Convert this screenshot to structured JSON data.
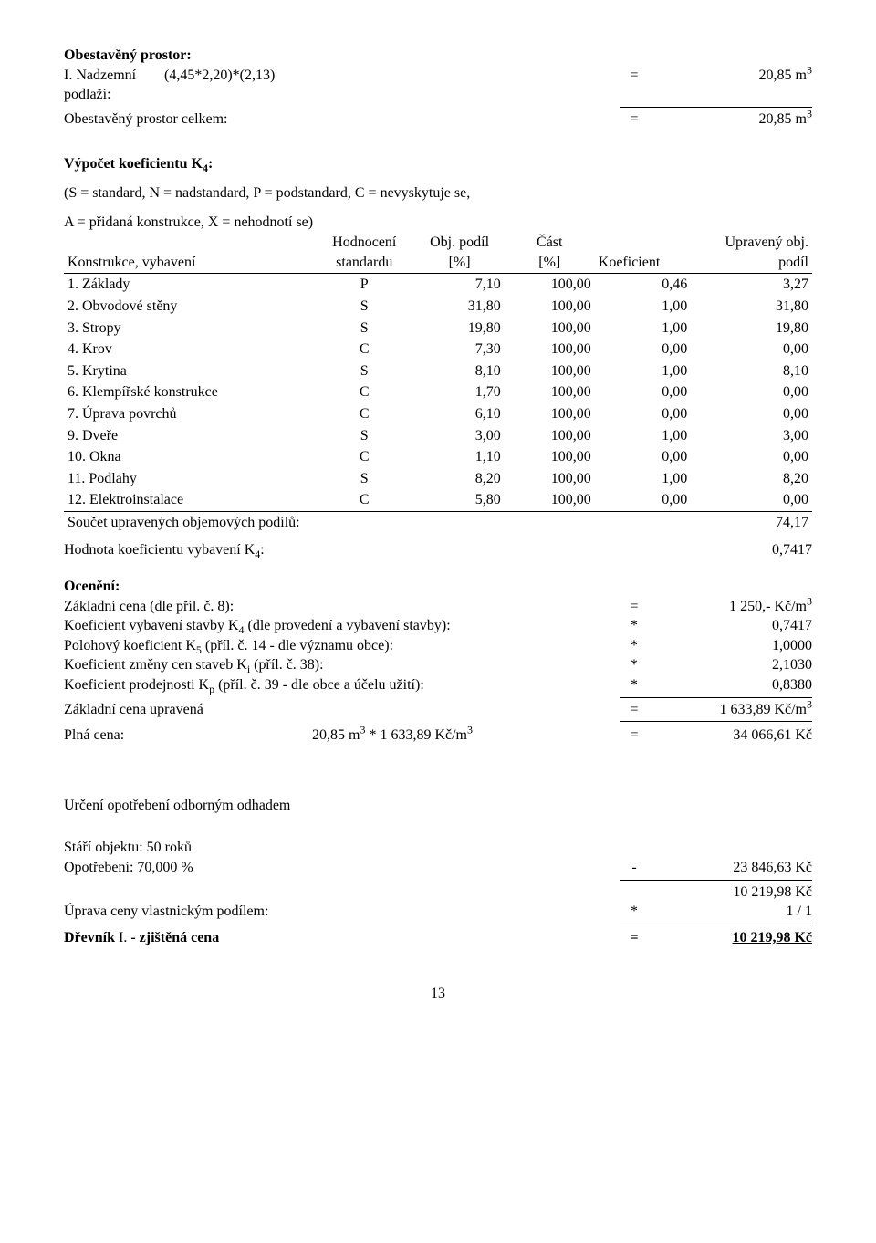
{
  "header": {
    "title": "Obestavěný prostor:",
    "row1_label": "I. Nadzemní podlaží:",
    "row1_calc": "(4,45*2,20)*(2,13)",
    "row1_eq": "=",
    "row1_val": "20,85 m",
    "row1_sup": "3",
    "row2_label": "Obestavěný prostor celkem:",
    "row2_eq": "=",
    "row2_val": "20,85 m",
    "row2_sup": "3"
  },
  "k4": {
    "title": "Výpočet koeficientu K",
    "title_sub": "4",
    "title_suffix": ":",
    "legend": "(S = standard, N = nadstandard, P = podstandard, C = nevyskytuje se,",
    "legend2": "A = přidaná konstrukce, X = nehodnotí se)",
    "head": {
      "c1": "Konstrukce, vybavení",
      "c2a": "Hodnocení",
      "c2b": "standardu",
      "c3a": "Obj. podíl",
      "c3b": "[%]",
      "c4a": "Část",
      "c4b": "[%]",
      "c5": "Koeficient",
      "c6a": "Upravený obj.",
      "c6b": "podíl"
    },
    "rows": [
      {
        "n": " 1. Základy",
        "h": "P",
        "op": "7,10",
        "cp": "100,00",
        "k": "0,46",
        "u": "3,27"
      },
      {
        "n": " 2. Obvodové stěny",
        "h": "S",
        "op": "31,80",
        "cp": "100,00",
        "k": "1,00",
        "u": "31,80"
      },
      {
        "n": " 3. Stropy",
        "h": "S",
        "op": "19,80",
        "cp": "100,00",
        "k": "1,00",
        "u": "19,80"
      },
      {
        "n": " 4. Krov",
        "h": "C",
        "op": "7,30",
        "cp": "100,00",
        "k": "0,00",
        "u": "0,00"
      },
      {
        "n": " 5. Krytina",
        "h": "S",
        "op": "8,10",
        "cp": "100,00",
        "k": "1,00",
        "u": "8,10"
      },
      {
        "n": " 6. Klempířské konstrukce",
        "h": "C",
        "op": "1,70",
        "cp": "100,00",
        "k": "0,00",
        "u": "0,00"
      },
      {
        "n": " 7. Úprava povrchů",
        "h": "C",
        "op": "6,10",
        "cp": "100,00",
        "k": "0,00",
        "u": "0,00"
      },
      {
        "n": " 9. Dveře",
        "h": "S",
        "op": "3,00",
        "cp": "100,00",
        "k": "1,00",
        "u": "3,00"
      },
      {
        "n": "10. Okna",
        "h": "C",
        "op": "1,10",
        "cp": "100,00",
        "k": "0,00",
        "u": "0,00"
      },
      {
        "n": "11. Podlahy",
        "h": "S",
        "op": "8,20",
        "cp": "100,00",
        "k": "1,00",
        "u": "8,20"
      },
      {
        "n": "12. Elektroinstalace",
        "h": "C",
        "op": "5,80",
        "cp": "100,00",
        "k": "0,00",
        "u": "0,00"
      }
    ],
    "sum_label": "Součet upravených objemových podílů:",
    "sum_val": "74,17",
    "k4_label_a": "Hodnota koeficientu vybavení K",
    "k4_label_sub": "4",
    "k4_label_b": ":",
    "k4_val": "0,7417"
  },
  "oceneni": {
    "title": "Ocenění:",
    "rows": [
      {
        "l": "Základní cena (dle příl. č. 8):",
        "eq": "=",
        "v": "1 250,- Kč/m",
        "sup": "3"
      },
      {
        "l": "Koeficient vybavení stavby K",
        "sub": "4",
        "l2": " (dle provedení a vybavení stavby):",
        "eq": "*",
        "v": "0,7417"
      },
      {
        "l": "Polohový koeficient K",
        "sub": "5",
        "l2": " (příl. č. 14 - dle významu obce):",
        "eq": "*",
        "v": "1,0000"
      },
      {
        "l": "Koeficient změny cen staveb K",
        "sub": "i",
        "l2": " (příl. č. 38):",
        "eq": "*",
        "v": "2,1030"
      },
      {
        "l": "Koeficient prodejnosti K",
        "sub": "p",
        "l2": " (příl. č. 39 - dle obce a účelu užití):",
        "eq": "*",
        "v": "0,8380"
      }
    ],
    "zc_label": "Základní cena upravená",
    "zc_eq": "=",
    "zc_val": "1 633,89 Kč/m",
    "zc_sup": "3",
    "plna_label": "Plná cena:",
    "plna_calc_a": "20,85 m",
    "plna_calc_asup": "3",
    "plna_calc_mid": " * 1 633,89 Kč/m",
    "plna_calc_bsup": "3",
    "plna_eq": "=",
    "plna_val": "34 066,61 Kč"
  },
  "bottom": {
    "title": "Určení opotřebení odborným odhadem",
    "stari": "Stáří objektu: 50 roků",
    "opot_label": "Opotřebení: 70,000 %",
    "opot_eq": "-",
    "opot_val": "23 846,63 Kč",
    "sub_val": "10 219,98 Kč",
    "uprava_label": "Úprava ceny vlastnickým podílem:",
    "uprava_eq": "*",
    "uprava_val": "1 / 1",
    "final_label_a": "Dřevník ",
    "final_label_b": "I.",
    "final_label_c": " - zjištěná cena",
    "final_eq": "=",
    "final_val": "10 219,98 Kč"
  },
  "page": "13"
}
